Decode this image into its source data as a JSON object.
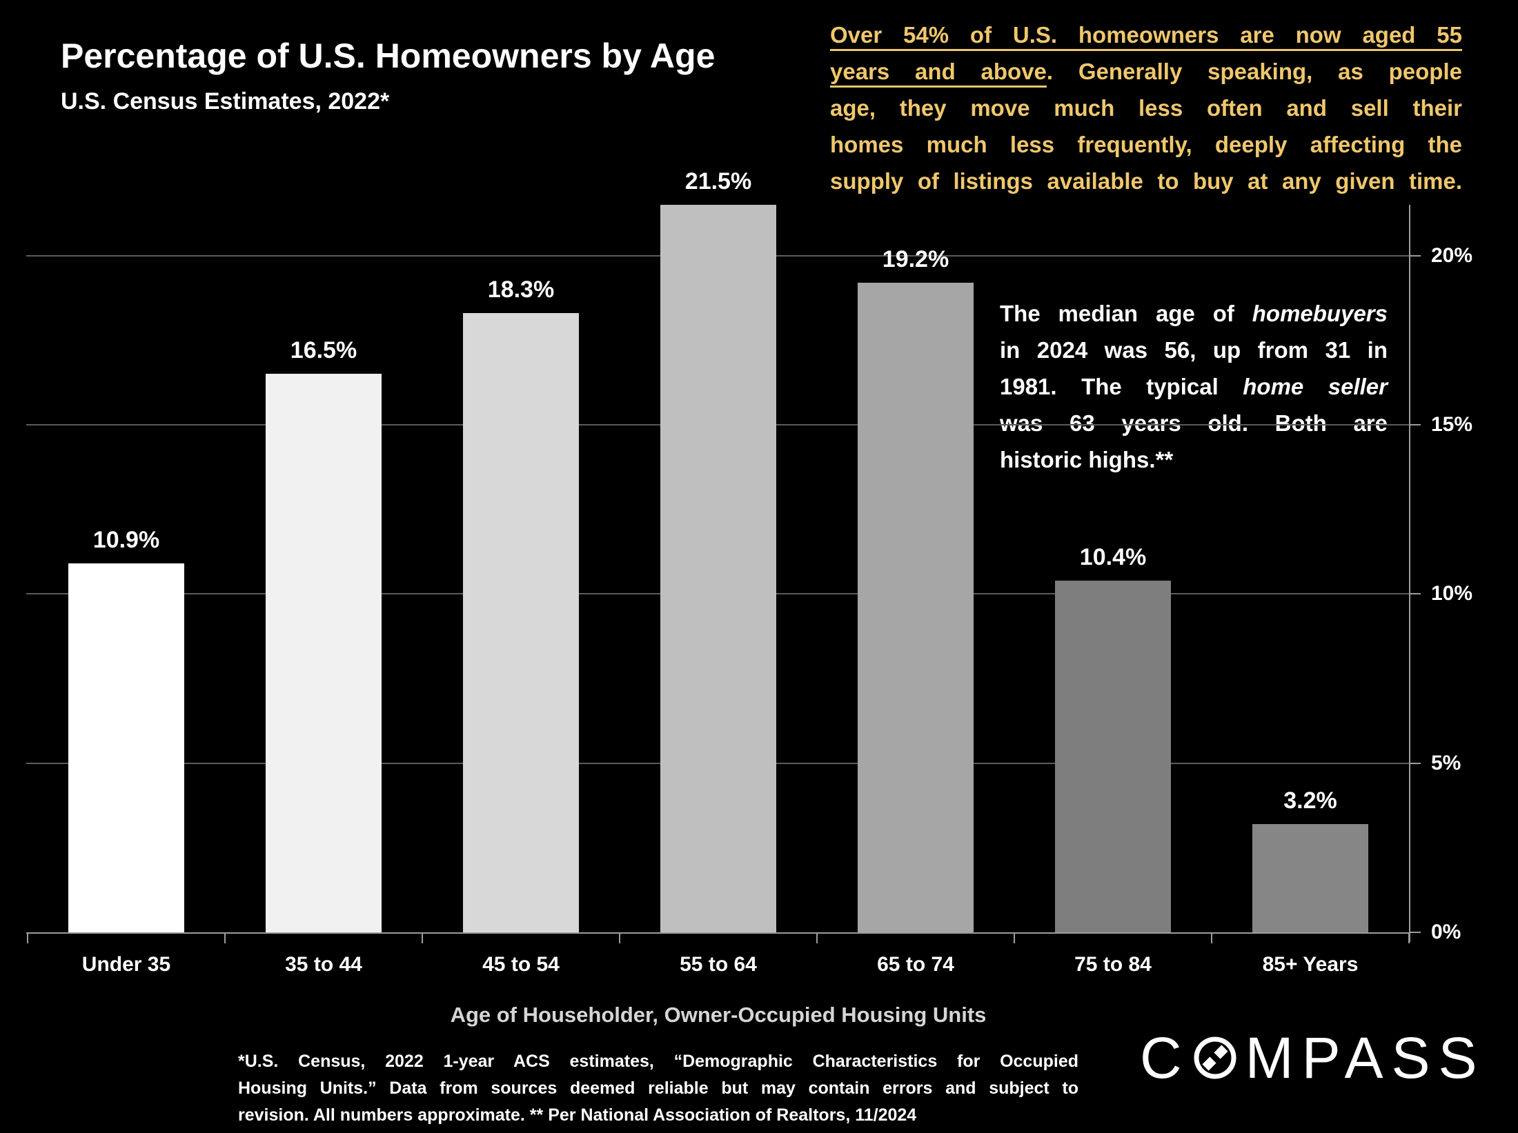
{
  "slide": {
    "title": "Percentage of U.S. Homeowners by Age",
    "subtitle": "U.S. Census Estimates, 2022*",
    "logo_text_before_glyph": "C",
    "logo_text_after_glyph": "MPASS"
  },
  "callout": {
    "full_text": "Over 54% of U.S. homeowners are now aged 55 years and above. Generally speaking, as people age, they move much less often and sell their homes much less frequently, deeply affecting the supply of listings available to buy at any given time.",
    "lines": [
      {
        "u": "Over 54% of U.S. homeowners are now aged 55",
        "r": ""
      },
      {
        "u": "years and above",
        "r": ". Generally speaking, as people"
      },
      {
        "u": "",
        "r": "age, they move much less often and sell their"
      },
      {
        "u": "",
        "r": "homes much less frequently, deeply affecting the"
      },
      {
        "u": "",
        "r": "supply of listings available to buy at any given time."
      }
    ]
  },
  "annotation": {
    "full_text": "The median age of homebuyers in 2024 was 56, up from 31 in 1981. The typical home seller was 63 years old. Both are historic highs.**",
    "lines": [
      {
        "pre": "The median age of ",
        "it": "homebuyers",
        "post": ""
      },
      {
        "pre": "in 2024 was 56, up from 31 in",
        "it": "",
        "post": ""
      },
      {
        "pre": "1981. The typical ",
        "it": "home seller",
        "post": ""
      },
      {
        "pre": "was 63 years old. Both are",
        "it": "",
        "post": ""
      },
      {
        "pre": "historic highs.**",
        "it": "",
        "post": ""
      }
    ]
  },
  "chart_data": {
    "type": "bar",
    "title": "Percentage of U.S. Homeowners by Age",
    "subtitle": "U.S. Census Estimates, 2022*",
    "categories": [
      "Under 35",
      "35 to 44",
      "45 to 54",
      "55 to 64",
      "65 to 74",
      "75 to 84",
      "85+ Years"
    ],
    "values": [
      10.9,
      16.5,
      18.3,
      21.5,
      19.2,
      10.4,
      3.2
    ],
    "value_labels": [
      "10.9%",
      "16.5%",
      "18.3%",
      "21.5%",
      "19.2%",
      "10.4%",
      "3.2%"
    ],
    "bar_colors": [
      "#ffffff",
      "#f1f1f1",
      "#d8d8d8",
      "#bfbfbf",
      "#a6a6a6",
      "#7e7e7e",
      "#868686"
    ],
    "xlabel": "Age of Householder, Owner-Occupied Housing Units",
    "ylabel": "",
    "ylim": [
      0,
      21.5
    ],
    "yticks": [
      0,
      5,
      10,
      15,
      20
    ],
    "ytick_labels": [
      "0%",
      "5%",
      "10%",
      "15%",
      "20%"
    ],
    "grid": "horizontal",
    "gridline_at": [
      5,
      10,
      15,
      20
    ],
    "legend_position": "none",
    "value_axis_side": "right"
  },
  "footnote": {
    "full_text": "*U.S. Census, 2022 1-year ACS estimates, “Demographic Characteristics for Occupied Housing Units.” Data from sources deemed reliable but may contain errors and subject to revision. All numbers approximate. ** Per National Association of Realtors, 11/2024",
    "lines": [
      "*U.S. Census, 2022 1-year ACS estimates, “Demographic Characteristics for Occupied",
      "Housing Units.” Data from sources deemed reliable but may contain errors and subject to",
      "revision. All numbers approximate. ** Per National Association of Realtors, 11/2024"
    ]
  },
  "colors": {
    "background": "#000000",
    "gold_accent": "#EFC76C",
    "text": "#FFFFFF",
    "muted_text": "#D5D5D5",
    "gridline": "#5B5B5B",
    "axis": "#9C9C9C"
  }
}
